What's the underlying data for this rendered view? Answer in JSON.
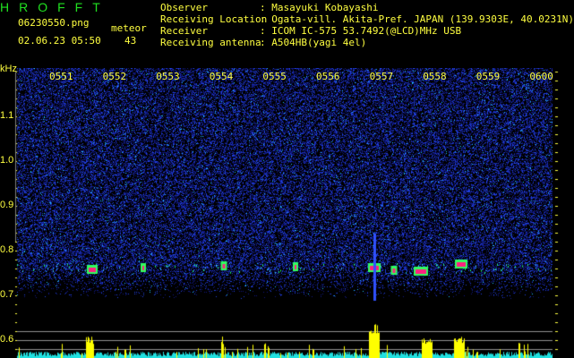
{
  "header": {
    "title": "HROFFT",
    "filename": "06230550.png",
    "datetime": "02.06.23 05:50",
    "meteor_label": "meteor",
    "meteor_count": "43",
    "info": [
      {
        "label": "Observer",
        "value": ": Masayuki Kobayashi"
      },
      {
        "label": "Receiving Location",
        "value": ": Ogata-vill. Akita-Pref. JAPAN (139.9303E, 40.0231N)"
      },
      {
        "label": "Receiver",
        "value": ": ICOM IC-575 53.7492(@LCD)MHz USB"
      },
      {
        "label": "Receiving antenna",
        "value": ": A504HB(yagi 4el)"
      }
    ]
  },
  "axis": {
    "unit": "kHz",
    "y_labels": [
      "1.1",
      "1.0",
      "0.9",
      "0.8",
      "0.7",
      "0.6"
    ],
    "time_labels": [
      "0551",
      "0552",
      "0553",
      "0554",
      "0555",
      "0556",
      "0557",
      "0558",
      "0559",
      "0600"
    ]
  },
  "colors": {
    "text": "#ffff40",
    "title": "#20e020",
    "noise": "#1830c0",
    "echo": "#ff2080",
    "bars": "#ffff00",
    "baseline": "#20e0e0"
  }
}
